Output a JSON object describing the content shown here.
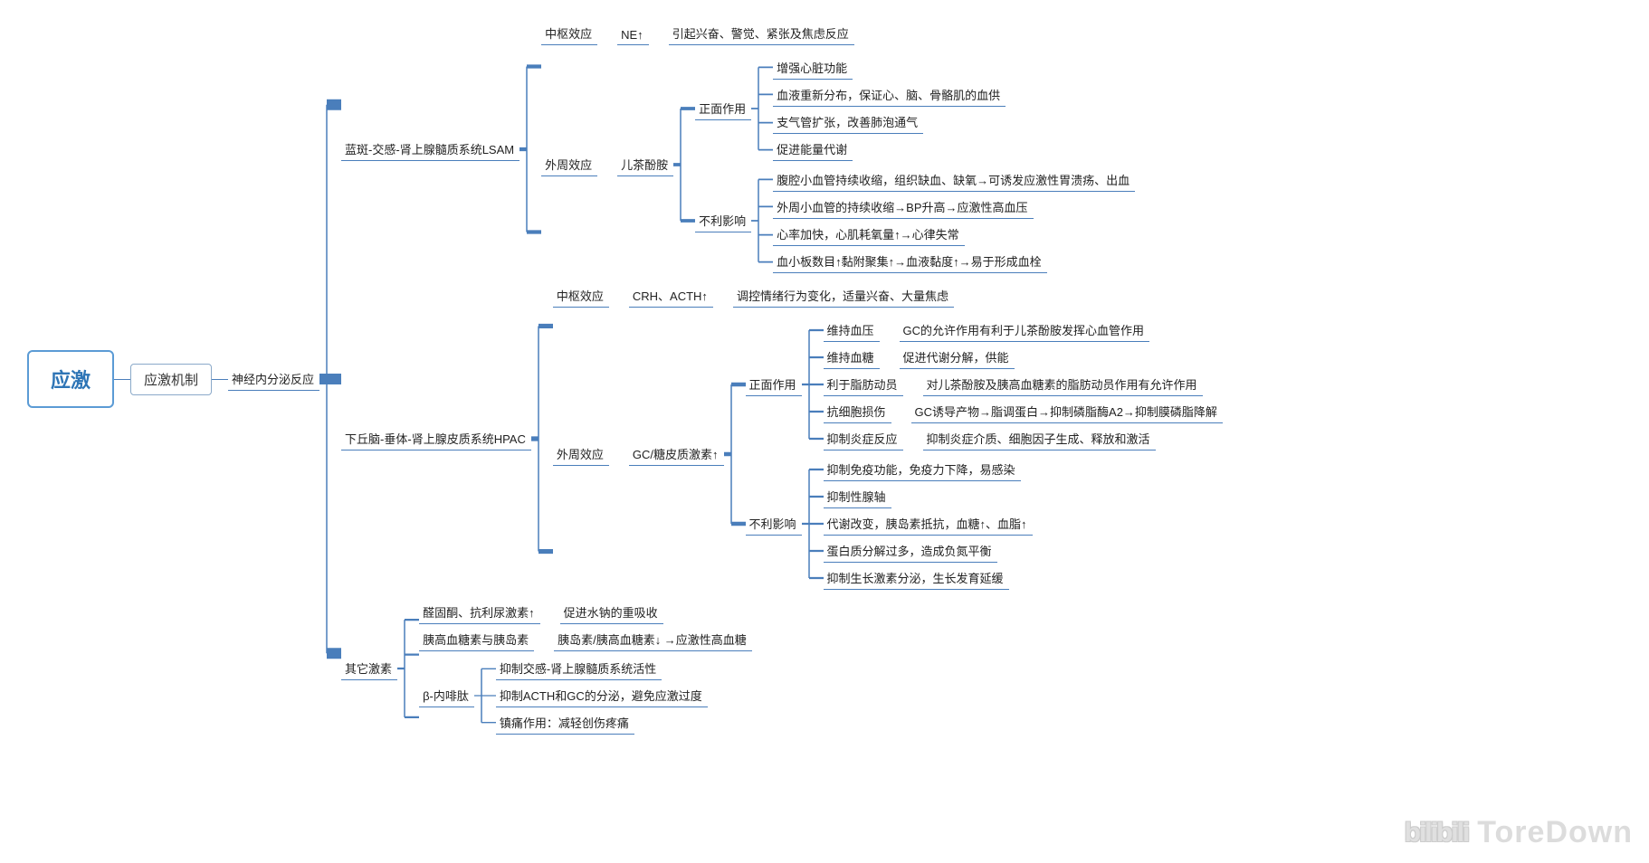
{
  "colors": {
    "line": "#4a7ebb",
    "root_border": "#5b9bd5",
    "root_text": "#2e75b6",
    "text": "#222222",
    "bg": "#ffffff"
  },
  "root": "应激",
  "l1": "应激机制",
  "l2": "神经内分泌反应",
  "branches": {
    "lsam": {
      "title": "蓝斑-交感-肾上腺髓质系统LSAM",
      "central": {
        "label": "中枢效应",
        "sub": "NE↑",
        "desc": "引起兴奋、警觉、紧张及焦虑反应"
      },
      "peripheral": {
        "label": "外周效应",
        "sub": "儿茶酚胺",
        "positive": {
          "label": "正面作用",
          "items": [
            "增强心脏功能",
            "血液重新分布，保证心、脑、骨骼肌的血供",
            "支气管扩张，改善肺泡通气",
            "促进能量代谢"
          ]
        },
        "negative": {
          "label": "不利影响",
          "items": [
            "腹腔小血管持续收缩，组织缺血、缺氧→可诱发应激性胃溃疡、出血",
            "外周小血管的持续收缩→BP升高→应激性高血压",
            "心率加快，心肌耗氧量↑→心律失常",
            "血小板数目↑黏附聚集↑→血液黏度↑→易于形成血栓"
          ]
        }
      }
    },
    "hpac": {
      "title": "下丘脑-垂体-肾上腺皮质系统HPAC",
      "central": {
        "label": "中枢效应",
        "sub": "CRH、ACTH↑",
        "desc": "调控情绪行为变化，适量兴奋、大量焦虑"
      },
      "peripheral": {
        "label": "外周效应",
        "sub": "GC/糖皮质激素↑",
        "positive": {
          "label": "正面作用",
          "rows": [
            {
              "k": "维持血压",
              "v": "GC的允许作用有利于儿茶酚胺发挥心血管作用"
            },
            {
              "k": "维持血糖",
              "v": "促进代谢分解，供能"
            },
            {
              "k": "利于脂肪动员",
              "v": "对儿茶酚胺及胰高血糖素的脂肪动员作用有允许作用"
            },
            {
              "k": "抗细胞损伤",
              "v": "GC诱导产物→脂调蛋白→抑制磷脂酶A2→抑制膜磷脂降解"
            },
            {
              "k": "抑制炎症反应",
              "v": "抑制炎症介质、细胞因子生成、释放和激活"
            }
          ]
        },
        "negative": {
          "label": "不利影响",
          "items": [
            "抑制免疫功能，免疫力下降，易感染",
            "抑制性腺轴",
            "代谢改变，胰岛素抵抗，血糖↑、血脂↑",
            "蛋白质分解过多，造成负氮平衡",
            "抑制生长激素分泌，生长发育延缓"
          ]
        }
      }
    },
    "other": {
      "title": "其它激素",
      "rows": [
        {
          "k": "醛固酮、抗利尿激素↑",
          "v": "促进水钠的重吸收"
        },
        {
          "k": "胰高血糖素与胰岛素",
          "v": "胰岛素/胰高血糖素↓ →应激性高血糖"
        }
      ],
      "endorphin": {
        "label": "β-内啡肽",
        "items": [
          "抑制交感-肾上腺髓质系统活性",
          "抑制ACTH和GC的分泌，避免应激过度",
          "镇痛作用：减轻创伤疼痛"
        ]
      }
    }
  },
  "watermark": {
    "logo": "bilibili",
    "text": "ToreDown"
  },
  "style": {
    "font_size_root": 22,
    "font_size_node": 13,
    "line_width": 1.5
  }
}
